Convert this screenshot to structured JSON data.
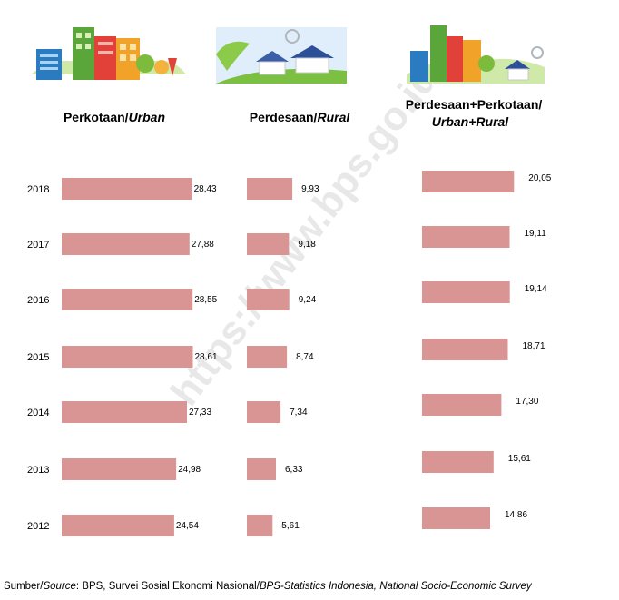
{
  "watermark": "https://www.bps.go.id",
  "source": {
    "prefix": "Sumber/",
    "prefix_italic": "Source",
    "mid": ": BPS, Survei Sosial Ekonomi Nasional/",
    "tail_italic": "BPS-Statistics Indonesia, National Socio-Economic Survey"
  },
  "chart_data": {
    "type": "bar",
    "orientation": "horizontal",
    "categories": [
      "2018",
      "2017",
      "2016",
      "2015",
      "2014",
      "2013",
      "2012"
    ],
    "bar_color": "#d99594",
    "series": [
      {
        "name_main": "Perkotaan/",
        "name_italic": "Urban",
        "values": [
          28.43,
          27.88,
          28.55,
          28.61,
          27.33,
          24.98,
          24.54
        ],
        "labels": [
          "28,43",
          "27,88",
          "28,55",
          "28,61",
          "27,33",
          "24,98",
          "24,54"
        ],
        "icon": "city-buildings-icon"
      },
      {
        "name_main": "Perdesaan/",
        "name_italic": "Rural",
        "values": [
          9.93,
          9.18,
          9.24,
          8.74,
          7.34,
          6.33,
          5.61
        ],
        "labels": [
          "9,93",
          "9,18",
          "9,24",
          "8,74",
          "7,34",
          "6,33",
          "5,61"
        ],
        "icon": "rural-houses-icon"
      },
      {
        "name_main": "Perdesaan+Perkotaan/",
        "name_italic": "Urban+Rural",
        "values": [
          20.05,
          19.11,
          19.14,
          18.71,
          17.3,
          15.61,
          14.86
        ],
        "labels": [
          "20,05",
          "19,11",
          "19,14",
          "18,71",
          "17,30",
          "15,61",
          "14,86"
        ],
        "icon": "city-and-village-icon"
      }
    ]
  }
}
